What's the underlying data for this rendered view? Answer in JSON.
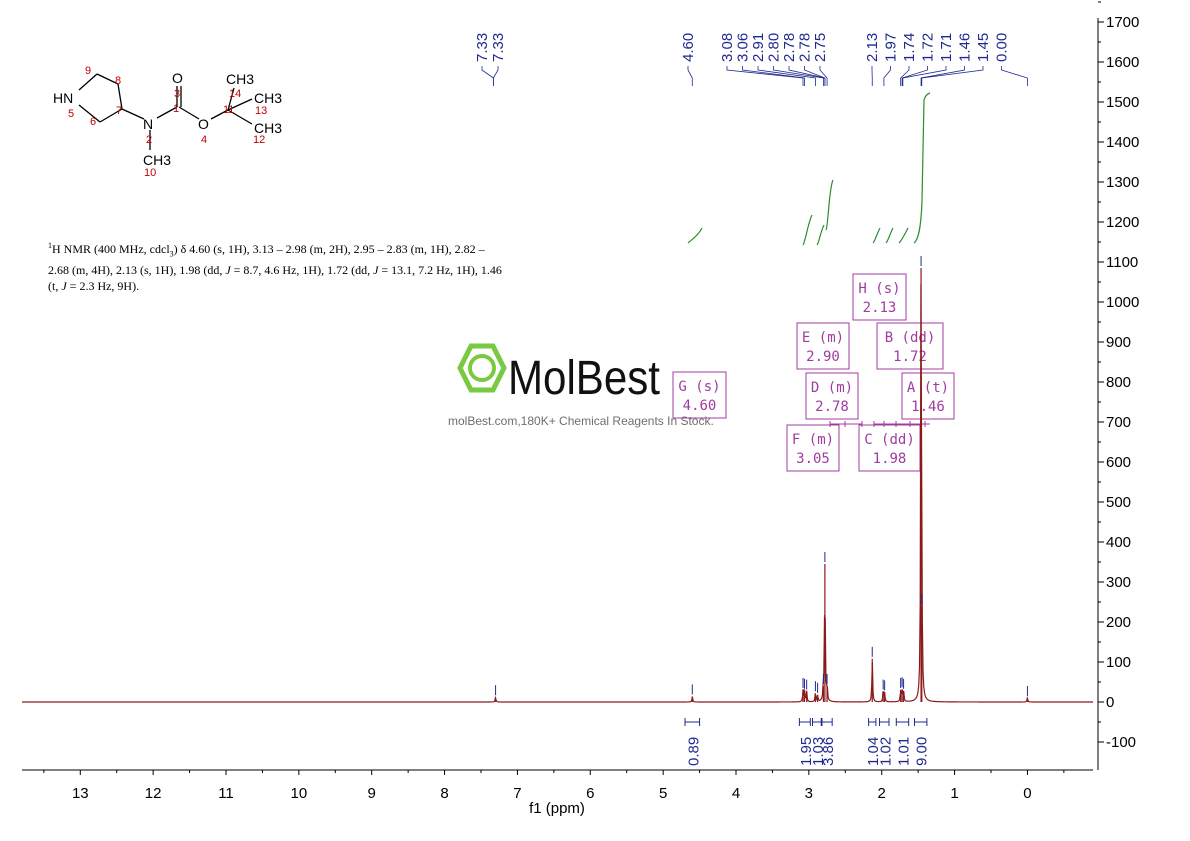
{
  "chart_data": {
    "type": "line",
    "title": "",
    "xlabel": "f1 (ppm)",
    "ylabel": "",
    "xlim": [
      13.8,
      -0.9
    ],
    "ylim": [
      -170,
      1710
    ],
    "x_ticks": [
      "13",
      "12",
      "11",
      "10",
      "9",
      "8",
      "7",
      "6",
      "5",
      "4",
      "3",
      "2",
      "1",
      "0"
    ],
    "y_ticks": [
      "-100",
      "0",
      "100",
      "200",
      "300",
      "400",
      "500",
      "600",
      "700",
      "800",
      "900",
      "1000",
      "1100",
      "1200",
      "1300",
      "1400",
      "1500",
      "1600",
      "1700"
    ],
    "spectrum_peaks": [
      {
        "ppm": 7.3,
        "height": 12
      },
      {
        "ppm": 4.6,
        "height": 14
      },
      {
        "ppm": 3.08,
        "height": 30
      },
      {
        "ppm": 3.06,
        "height": 28
      },
      {
        "ppm": 3.03,
        "height": 26
      },
      {
        "ppm": 2.91,
        "height": 22
      },
      {
        "ppm": 2.88,
        "height": 18
      },
      {
        "ppm": 2.8,
        "height": 40
      },
      {
        "ppm": 2.78,
        "height": 345
      },
      {
        "ppm": 2.75,
        "height": 40
      },
      {
        "ppm": 2.13,
        "height": 108
      },
      {
        "ppm": 1.98,
        "height": 26
      },
      {
        "ppm": 1.96,
        "height": 24
      },
      {
        "ppm": 1.74,
        "height": 30
      },
      {
        "ppm": 1.72,
        "height": 32
      },
      {
        "ppm": 1.7,
        "height": 28
      },
      {
        "ppm": 1.46,
        "height": 1085
      },
      {
        "ppm": 1.45,
        "height": 240
      },
      {
        "ppm": 0.0,
        "height": 10
      }
    ],
    "peak_labels": {
      "group1": [
        "7.33",
        "7.33"
      ],
      "group2": [
        "4.60"
      ],
      "group3": [
        "3.08",
        "3.06",
        "2.91",
        "2.80",
        "2.78",
        "2.78",
        "2.75"
      ],
      "group4": [
        "2.13",
        "1.97",
        "1.74",
        "1.72",
        "1.71",
        "1.46",
        "1.45",
        "0.00"
      ]
    },
    "integrals": [
      {
        "from": 4.7,
        "to": 4.5,
        "label": "0.89"
      },
      {
        "from": 3.13,
        "to": 2.98,
        "label": "1.95"
      },
      {
        "from": 2.95,
        "to": 2.83,
        "label": "1.03"
      },
      {
        "from": 2.82,
        "to": 2.68,
        "label": "3.86"
      },
      {
        "from": 2.18,
        "to": 2.08,
        "label": "1.04"
      },
      {
        "from": 2.03,
        "to": 1.9,
        "label": "1.02"
      },
      {
        "from": 1.8,
        "to": 1.63,
        "label": "1.01"
      },
      {
        "from": 1.55,
        "to": 1.38,
        "label": "9.00"
      }
    ],
    "multiplet_boxes": [
      {
        "letter": "H (s)",
        "value": "2.13"
      },
      {
        "letter": "E (m)",
        "value": "2.90"
      },
      {
        "letter": "B (dd)",
        "value": "1.72"
      },
      {
        "letter": "G (s)",
        "value": "4.60"
      },
      {
        "letter": "D (m)",
        "value": "2.78"
      },
      {
        "letter": "A (t)",
        "value": "1.46"
      },
      {
        "letter": "F (m)",
        "value": "3.05"
      },
      {
        "letter": "C (dd)",
        "value": "1.98"
      }
    ]
  },
  "description": {
    "sup": "1",
    "line1_a": "H NMR (400 MHz, cdcl",
    "line1_sub": "3",
    "line1_b": ") δ 4.60 (s, 1H), 3.13 – 2.98 (m, 2H), 2.95 – 2.83 (m, 1H), 2.82 –",
    "line2_a": "2.68 (m, 4H), 2.13 (s, 1H), 1.98 (dd, ",
    "line2_j1": "J",
    "line2_b": " = 8.7, 4.6 Hz, 1H), 1.72 (dd, ",
    "line2_j2": "J",
    "line2_c": " = 13.1, 7.2 Hz, 1H), 1.46",
    "line3_a": "(t, ",
    "line3_j": "J",
    "line3_b": " = 2.3 Hz, 9H)."
  },
  "structure": {
    "atoms": {
      "nh": "HN",
      "n": "N",
      "o_carbonyl": "O",
      "o_ester": "O",
      "ch3_top": "CH3",
      "ch3_right": "CH3",
      "ch3_lower": "CH3",
      "ch3_n": "CH3"
    },
    "numbers": [
      "9",
      "8",
      "7",
      "6",
      "5",
      "3",
      "1",
      "2",
      "10",
      "4",
      "11",
      "14",
      "13",
      "12"
    ]
  },
  "watermark": {
    "brand": "MolBest",
    "tagline": "molBest.com,180K+ Chemical Reagents In Stock."
  },
  "colors": {
    "spectrum": "#8b1a1a",
    "label_blue": "#1f2a8f",
    "integral_green": "#2e8b2e",
    "box_purple": "#a03ca0",
    "structure_red": "#c00000",
    "logo_green": "#7ac943"
  }
}
